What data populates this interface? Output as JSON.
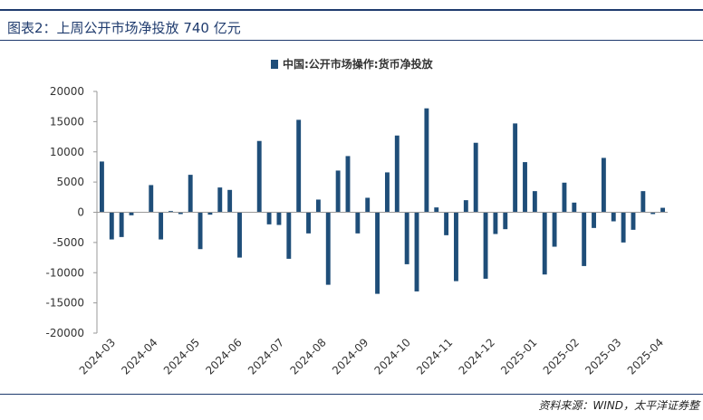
{
  "figure": {
    "title": "图表2：上周公开市场净投放 740 亿元",
    "source": "资料来源：WIND，太平洋证券整"
  },
  "colors": {
    "bar": "#1f4e79",
    "rule": "#1f3b6e",
    "axis": "#999999"
  },
  "chart_data": {
    "type": "bar",
    "series": [
      {
        "name": "中国:公开市场操作:货币净投放",
        "values": [
          8400,
          -4500,
          -4100,
          -500,
          0,
          4500,
          -4500,
          200,
          -300,
          6200,
          -6100,
          -400,
          4100,
          3700,
          -7500,
          0,
          11800,
          -2000,
          -2100,
          -7700,
          15300,
          -3500,
          2100,
          -12000,
          6900,
          9300,
          -3500,
          2400,
          -13500,
          6600,
          12700,
          -8600,
          -13100,
          17200,
          800,
          -3800,
          -11400,
          2000,
          11500,
          -11000,
          -3600,
          -2800,
          14700,
          8300,
          3500,
          -10300,
          -5700,
          4900,
          1600,
          -8900,
          -2600,
          9000,
          -1500,
          -5000,
          -2900,
          3500,
          -300,
          740
        ]
      }
    ],
    "x_labels": [
      "2024-03",
      "2024-04",
      "2024-05",
      "2024-06",
      "2024-07",
      "2024-08",
      "2024-09",
      "2024-10",
      "2024-11",
      "2024-12",
      "2025-01",
      "2025-02",
      "2025-03",
      "2025-04"
    ],
    "y_ticks": [
      20000,
      15000,
      10000,
      5000,
      0,
      -5000,
      -10000,
      -15000,
      -20000
    ],
    "y_tick_labels": [
      "20000",
      "15000",
      "10000",
      "5000",
      "0",
      "-5000",
      "-10000",
      "-15000",
      "-20000"
    ],
    "ylim": [
      -20000,
      20000
    ],
    "grid": false,
    "legend_position": "top-center"
  }
}
